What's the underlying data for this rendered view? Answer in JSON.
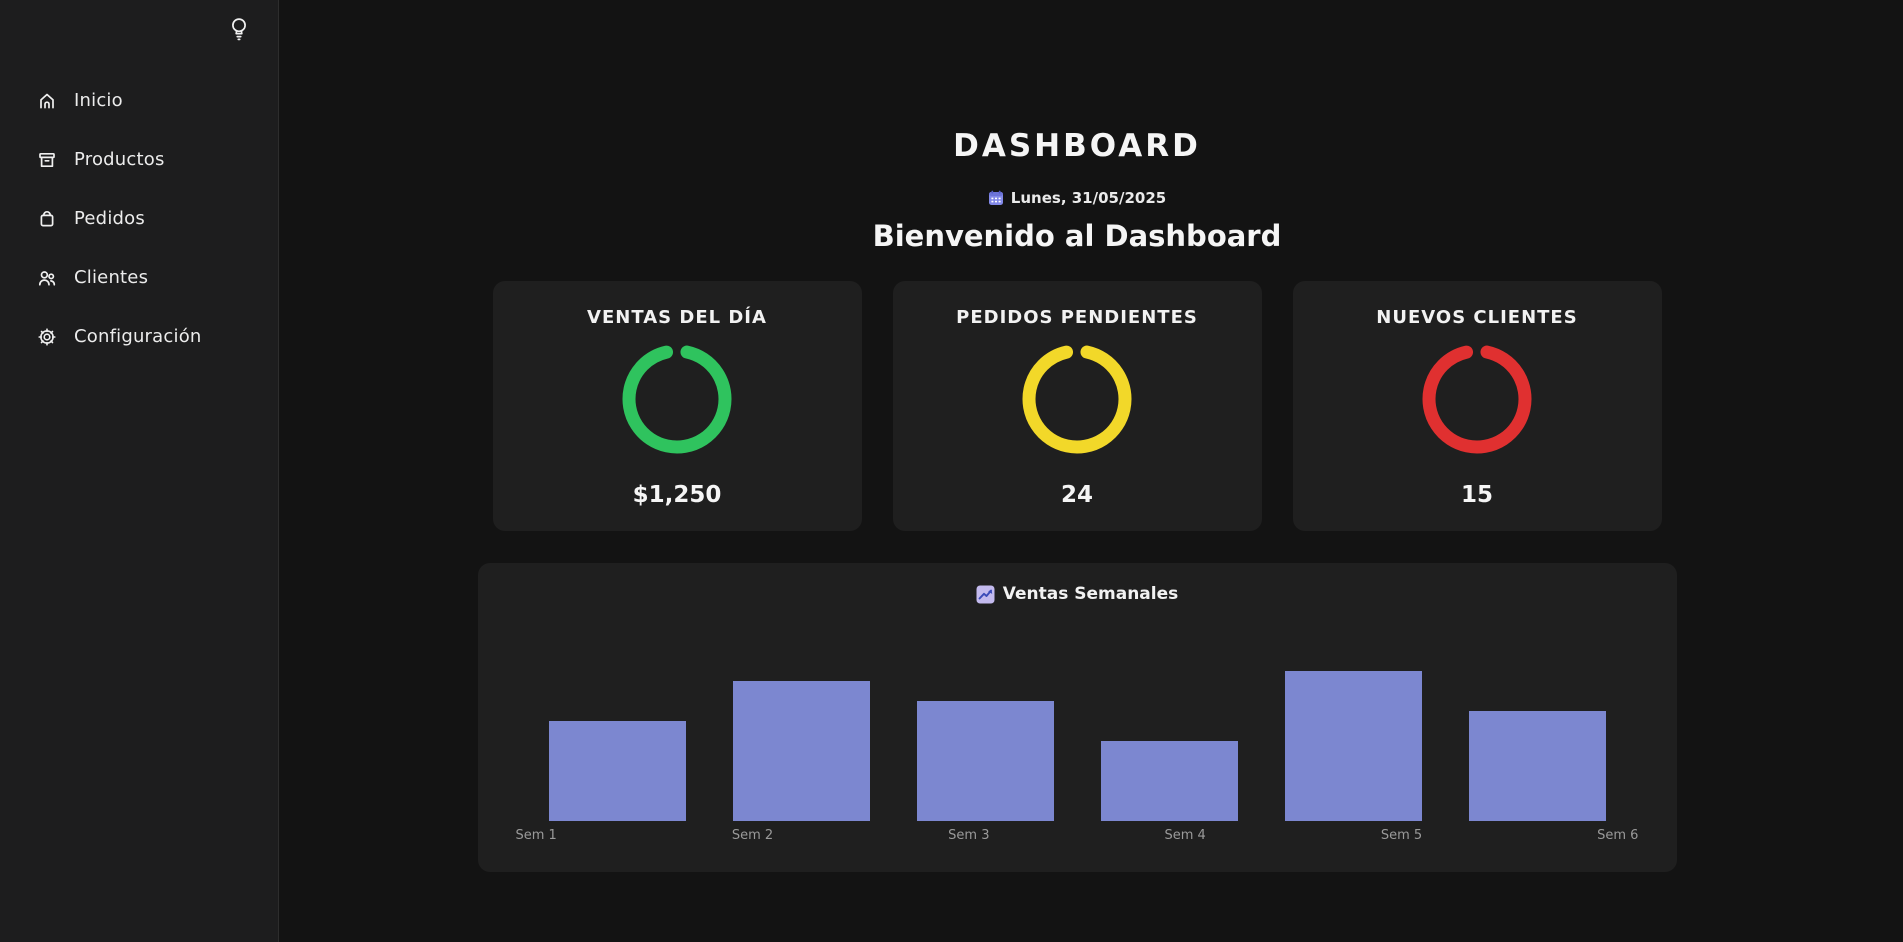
{
  "sidebar": {
    "toggle_icon": "lightbulb-icon",
    "items": [
      {
        "id": "inicio",
        "label": "Inicio",
        "icon": "home-icon"
      },
      {
        "id": "productos",
        "label": "Productos",
        "icon": "archive-box-icon"
      },
      {
        "id": "pedidos",
        "label": "Pedidos",
        "icon": "shopping-bag-icon"
      },
      {
        "id": "clientes",
        "label": "Clientes",
        "icon": "users-icon"
      },
      {
        "id": "configuracion",
        "label": "Configuración",
        "icon": "gear-icon"
      }
    ]
  },
  "header": {
    "title": "DASHBOARD",
    "date_icon": "calendar-icon",
    "date_text": "Lunes, 31/05/2025",
    "welcome": "Bienvenido al Dashboard"
  },
  "kpis": [
    {
      "title": "VENTAS DEL DÍA",
      "value": "$1,250",
      "ring_color": "#2fc35e"
    },
    {
      "title": "PEDIDOS PENDIENTES",
      "value": "24",
      "ring_color": "#f2d829"
    },
    {
      "title": "NUEVOS CLIENTES",
      "value": "15",
      "ring_color": "#e03030"
    }
  ],
  "chart_data": {
    "type": "bar",
    "title": "Ventas Semanales",
    "title_icon": "chart-increasing-icon",
    "categories": [
      "Sem 1",
      "Sem 2",
      "Sem 3",
      "Sem 4",
      "Sem 5",
      "Sem 6"
    ],
    "values": [
      100,
      140,
      120,
      80,
      150,
      110
    ],
    "xlabel": "",
    "ylabel": "",
    "ylim": [
      0,
      160
    ],
    "grid": false,
    "legend": "none",
    "bar_color": "#7c87d0",
    "label_color": "#9a9a9a"
  },
  "colors": {
    "page_bg": "#131313",
    "sidebar_bg": "#1d1d1e",
    "card_bg": "#1f1f1f",
    "text": "#f2f2f2",
    "ring_green": "#2fc35e",
    "ring_yellow": "#f2d829",
    "ring_red": "#e03030",
    "bar": "#7c87d0"
  }
}
